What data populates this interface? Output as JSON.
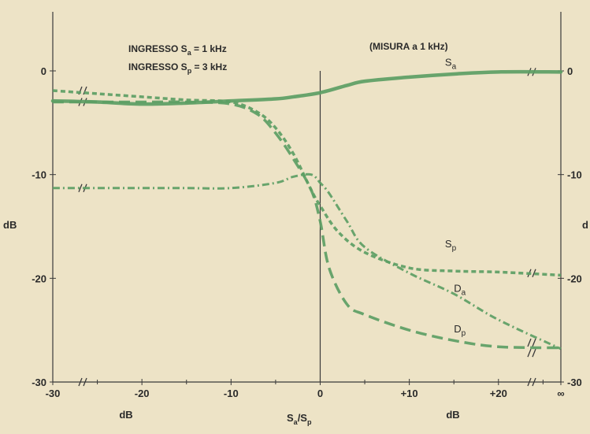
{
  "chart_data": {
    "type": "line",
    "annotations": {
      "input_a": "INGRESSO S",
      "input_a_sub": "a",
      "input_a_value": " = 1 kHz",
      "input_p": "INGRESSO S",
      "input_p_sub": "p",
      "input_p_value": " = 3 kHz",
      "measure": "(MISURA a 1 kHz)"
    },
    "ylabel_left": "dB",
    "ylabel_right": "d",
    "xlabel_left": "dB",
    "xlabel_right": "dB",
    "xlabel_center": "S",
    "xlabel_center_sub1": "a",
    "xlabel_center_mid": "/S",
    "xlabel_center_sub2": "p",
    "x_ticks": [
      {
        "value": -30,
        "label": "-30"
      },
      {
        "value": -20,
        "label": "-20"
      },
      {
        "value": -10,
        "label": "-10"
      },
      {
        "value": 0,
        "label": "0"
      },
      {
        "value": 10,
        "label": "+10"
      },
      {
        "value": 20,
        "label": "+20"
      },
      {
        "value": 27,
        "label": "∞"
      }
    ],
    "y_ticks_left": [
      {
        "value": 0,
        "label": "0"
      },
      {
        "value": -10,
        "label": "-10"
      },
      {
        "value": -20,
        "label": "-20"
      },
      {
        "value": -30,
        "label": "-30"
      }
    ],
    "y_ticks_right": [
      {
        "value": 0,
        "label": "0"
      },
      {
        "value": -10,
        "label": "-10"
      },
      {
        "value": -20,
        "label": "-20"
      },
      {
        "value": -30,
        "label": "-30"
      }
    ],
    "xlim": [
      -30,
      27
    ],
    "ylim": [
      -30,
      0
    ],
    "colors": {
      "series": "#5c9e64",
      "axis": "#3a3a3a",
      "background": "#ede3c6"
    },
    "series": [
      {
        "name": "S",
        "sub": "a",
        "style": "solid",
        "x": [
          -30,
          -25,
          -20,
          -15,
          -10,
          -5,
          -3,
          0,
          3,
          5,
          10,
          15,
          20,
          27
        ],
        "y": [
          -2.9,
          -3.0,
          -3.2,
          -3.1,
          -2.9,
          -2.7,
          -2.5,
          -2.1,
          -1.4,
          -1.0,
          -0.6,
          -0.3,
          -0.1,
          -0.1
        ]
      },
      {
        "name": "S",
        "sub": "p",
        "style": "dashed",
        "x": [
          -30,
          -25,
          -20,
          -15,
          -10,
          -7,
          -5,
          -3,
          -1,
          0,
          2,
          5,
          10,
          15,
          20,
          27
        ],
        "y": [
          -1.9,
          -2.2,
          -2.5,
          -2.8,
          -3.0,
          -4.0,
          -5.5,
          -8.0,
          -11.5,
          -13.0,
          -15.5,
          -17.5,
          -19.0,
          -19.3,
          -19.4,
          -19.7
        ]
      },
      {
        "name": "D",
        "sub": "a",
        "style": "dashdot",
        "x": [
          -30,
          -25,
          -20,
          -15,
          -10,
          -5,
          -3,
          -1,
          0,
          1,
          3,
          5,
          10,
          15,
          20,
          27
        ],
        "y": [
          -11.3,
          -11.3,
          -11.3,
          -11.3,
          -11.3,
          -10.8,
          -10.2,
          -10.0,
          -10.8,
          -11.8,
          -14.5,
          -17.0,
          -19.5,
          -21.5,
          -24.0,
          -26.8
        ]
      },
      {
        "name": "D",
        "sub": "p",
        "style": "longdash",
        "x": [
          -30,
          -25,
          -20,
          -15,
          -10,
          -7,
          -5,
          -3,
          -1,
          0,
          1,
          3,
          5,
          10,
          15,
          20,
          27
        ],
        "y": [
          -3.0,
          -3.0,
          -3.0,
          -3.0,
          -3.2,
          -4.2,
          -6.0,
          -8.5,
          -11.5,
          -14.5,
          -19.0,
          -22.5,
          -23.5,
          -25.0,
          -26.0,
          -26.6,
          -26.7
        ]
      }
    ]
  }
}
